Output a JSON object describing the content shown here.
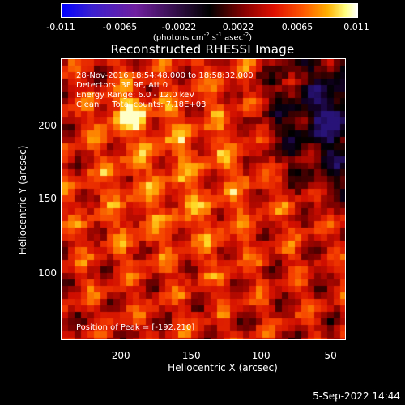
{
  "colorbar": {
    "ticks": [
      "-0.011",
      "-0.0065",
      "-0.0022",
      "0.0022",
      "0.0065",
      "0.011"
    ],
    "unit_prefix": "(photons cm",
    "unit_sup1": "-2",
    "unit_mid1": " s",
    "unit_sup2": "-1",
    "unit_mid2": " asec",
    "unit_sup3": "-2",
    "unit_suffix": ")"
  },
  "title": "Reconstructed RHESSI Image",
  "annotations": {
    "time": "28-Nov-2016 18:54:48.000 to 18:58:32.000",
    "detectors": "Detectors: 3F 9F, Att 0",
    "energy": "Energy Range: 6.0 - 12.0 keV",
    "clean": "Clean     Total counts: 7.18E+03",
    "peak": "Position of Peak = [-192,210]"
  },
  "axes": {
    "xlabel": "Heliocentric X (arcsec)",
    "ylabel": "Heliocentric Y (arcsec)",
    "xticks": [
      "-200",
      "-150",
      "-100",
      "-50"
    ],
    "yticks": [
      "200",
      "150",
      "100"
    ]
  },
  "footer": {
    "date": "5-Sep-2022 14:44"
  }
}
